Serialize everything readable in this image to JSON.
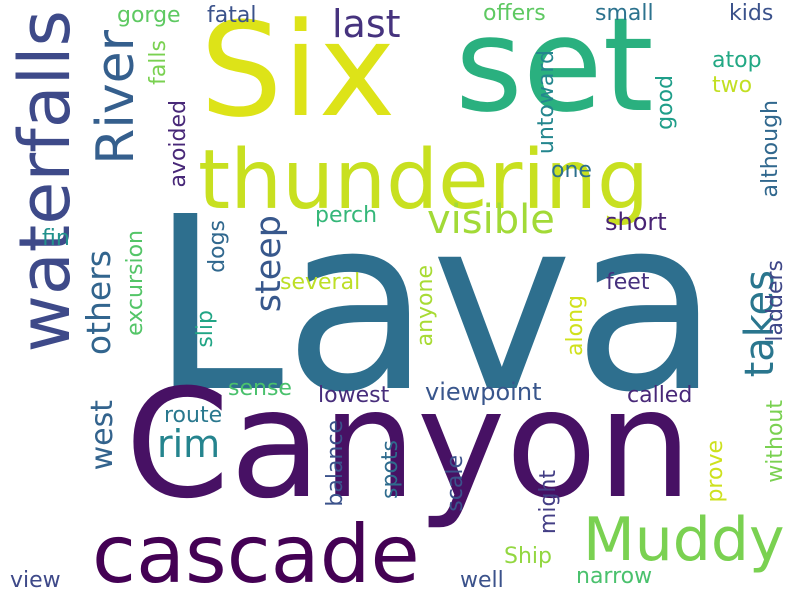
{
  "words": [
    {
      "text": "Lava",
      "color": "#2e6f8e",
      "vertical": false
    },
    {
      "text": "Canyon",
      "color": "#471164",
      "vertical": false
    },
    {
      "text": "Six",
      "color": "#dde318",
      "vertical": false
    },
    {
      "text": "set",
      "color": "#2ab07f",
      "vertical": false
    },
    {
      "text": "thundering",
      "color": "#c8e020",
      "vertical": false
    },
    {
      "text": "waterfalls",
      "color": "#3e4a89",
      "vertical": true
    },
    {
      "text": "cascade",
      "color": "#440154",
      "vertical": false
    },
    {
      "text": "Muddy",
      "color": "#7ad151",
      "vertical": false
    },
    {
      "text": "River",
      "color": "#355f8d",
      "vertical": true
    },
    {
      "text": "visible",
      "color": "#a2da37",
      "vertical": false
    },
    {
      "text": "others",
      "color": "#32658e",
      "vertical": true
    },
    {
      "text": "steep",
      "color": "#38588c",
      "vertical": true
    },
    {
      "text": "last",
      "color": "#46337e",
      "vertical": false
    },
    {
      "text": "takes",
      "color": "#2a768e",
      "vertical": true
    },
    {
      "text": "rim",
      "color": "#25848e",
      "vertical": false
    },
    {
      "text": "west",
      "color": "#33638d",
      "vertical": true
    },
    {
      "text": "gorge",
      "color": "#5ec962",
      "vertical": false
    },
    {
      "text": "fatal",
      "color": "#3b528b",
      "vertical": false
    },
    {
      "text": "offers",
      "color": "#5ec962",
      "vertical": false
    },
    {
      "text": "small",
      "color": "#2c728e",
      "vertical": false
    },
    {
      "text": "kids",
      "color": "#3b528b",
      "vertical": false
    },
    {
      "text": "atop",
      "color": "#22a884",
      "vertical": false
    },
    {
      "text": "two",
      "color": "#c2df23",
      "vertical": false
    },
    {
      "text": "falls",
      "color": "#7ad151",
      "vertical": true
    },
    {
      "text": "avoided",
      "color": "#482878",
      "vertical": true
    },
    {
      "text": "untoward",
      "color": "#24868e",
      "vertical": true
    },
    {
      "text": "good",
      "color": "#1f9e89",
      "vertical": true
    },
    {
      "text": "one",
      "color": "#2d708e",
      "vertical": false
    },
    {
      "text": "although",
      "color": "#31688e",
      "vertical": true
    },
    {
      "text": "perch",
      "color": "#35b779",
      "vertical": false
    },
    {
      "text": "short",
      "color": "#482374",
      "vertical": false
    },
    {
      "text": "fin",
      "color": "#21918c",
      "vertical": false
    },
    {
      "text": "dogs",
      "color": "#31688e",
      "vertical": true
    },
    {
      "text": "several",
      "color": "#bddf26",
      "vertical": false
    },
    {
      "text": "excursion",
      "color": "#54c568",
      "vertical": true
    },
    {
      "text": "anyone",
      "color": "#a8db34",
      "vertical": true
    },
    {
      "text": "feet",
      "color": "#46307e",
      "vertical": false
    },
    {
      "text": "ladders",
      "color": "#3f4788",
      "vertical": true
    },
    {
      "text": "slip",
      "color": "#21a585",
      "vertical": true
    },
    {
      "text": "along",
      "color": "#d0e11c",
      "vertical": true
    },
    {
      "text": "sense",
      "color": "#4ac16d",
      "vertical": false
    },
    {
      "text": "lowest",
      "color": "#472d7b",
      "vertical": false
    },
    {
      "text": "viewpoint",
      "color": "#39568c",
      "vertical": false
    },
    {
      "text": "called",
      "color": "#482878",
      "vertical": false
    },
    {
      "text": "route",
      "color": "#2a788e",
      "vertical": false
    },
    {
      "text": "balance",
      "color": "#3b528b",
      "vertical": true
    },
    {
      "text": "spots",
      "color": "#2f6c8e",
      "vertical": true
    },
    {
      "text": "scale",
      "color": "#3b528b",
      "vertical": true
    },
    {
      "text": "might",
      "color": "#433e85",
      "vertical": true
    },
    {
      "text": "prove",
      "color": "#cde11d",
      "vertical": true
    },
    {
      "text": "without",
      "color": "#7ad151",
      "vertical": true
    },
    {
      "text": "Ship",
      "color": "#93d741",
      "vertical": false
    },
    {
      "text": "narrow",
      "color": "#4ac16d",
      "vertical": false
    },
    {
      "text": "well",
      "color": "#3b528b",
      "vertical": false
    },
    {
      "text": "view",
      "color": "#3e4989",
      "vertical": false
    }
  ]
}
